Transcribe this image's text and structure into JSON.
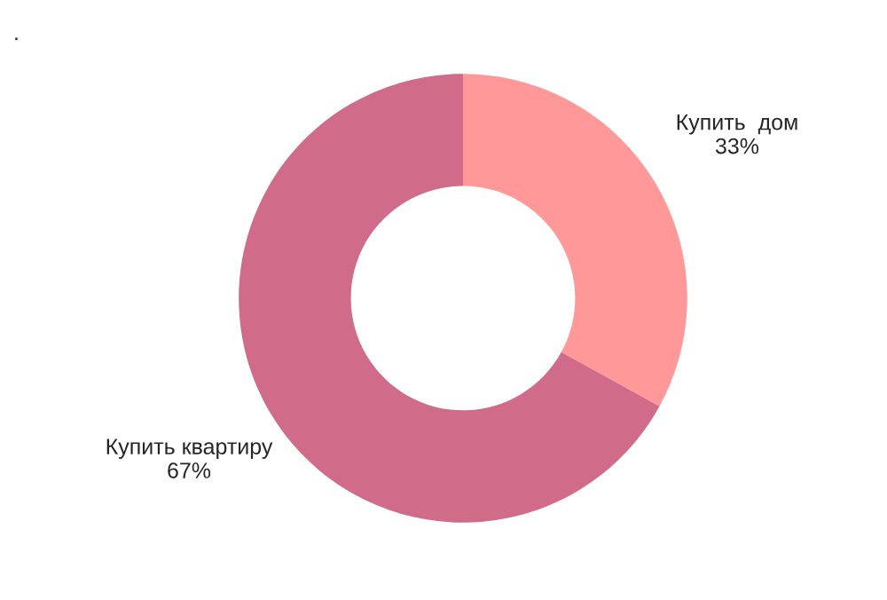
{
  "chart_data": {
    "type": "donut",
    "title": ".",
    "categories": [
      "Купить  дом",
      "Купить квартиру"
    ],
    "values": [
      33,
      67
    ],
    "value_labels": [
      "33%",
      "67%"
    ],
    "colors": [
      "#ff9999",
      "#d06b8a"
    ],
    "legend": false
  }
}
